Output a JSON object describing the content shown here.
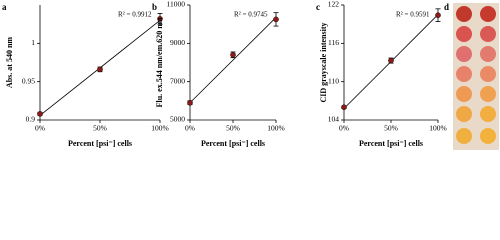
{
  "chart_data": [
    {
      "type": "scatter",
      "panel_label": "a",
      "ylabel": "Abs. at 540 nm",
      "xlabel": "Percent [psi⁻] cells",
      "annotation": "R² = 0.9912",
      "x": [
        0,
        50,
        100
      ],
      "values": [
        0.908,
        0.966,
        1.032
      ],
      "errors": [
        0.002,
        0.003,
        0.007
      ],
      "trendline": [
        0.906,
        1.03
      ],
      "color": "#8b1a1a",
      "xlim": [
        0,
        100
      ],
      "xticks": [
        {
          "value": 0,
          "label": "0%"
        },
        {
          "value": 50,
          "label": "50%"
        },
        {
          "value": 100,
          "label": "100%"
        }
      ],
      "ylim": [
        0.9,
        1.05
      ],
      "yticks": [
        0.9,
        0.95,
        1
      ]
    },
    {
      "type": "scatter",
      "panel_label": "b",
      "ylabel": "Flu. ex.544 nm/em.620 nm",
      "xlabel": "Percent [psi⁻] cells",
      "annotation": "R² = 0.9745",
      "x": [
        0,
        50,
        100
      ],
      "values": [
        5900,
        8400,
        10250
      ],
      "errors": [
        100,
        150,
        350
      ],
      "trendline": [
        5900,
        10350
      ],
      "color": "#8b1a1a",
      "xlim": [
        0,
        100
      ],
      "xticks": [
        {
          "value": 0,
          "label": "0%"
        },
        {
          "value": 50,
          "label": "50%"
        },
        {
          "value": 100,
          "label": "100%"
        }
      ],
      "ylim": [
        5000,
        11000
      ],
      "yticks": [
        5000,
        7000,
        9000,
        11000
      ]
    },
    {
      "type": "scatter",
      "panel_label": "c",
      "ylabel": "CID grayscale intensity",
      "xlabel": "Percent [psi⁻] cells",
      "annotation": "R² = 0.9591",
      "x": [
        0,
        50,
        100
      ],
      "values": [
        106,
        113.3,
        120.4
      ],
      "errors": [
        0.2,
        0.4,
        1.0
      ],
      "trendline": [
        105.8,
        120.5
      ],
      "color": "#8b1a1a",
      "xlim": [
        0,
        100
      ],
      "xticks": [
        {
          "value": 0,
          "label": "0%"
        },
        {
          "value": 50,
          "label": "50%"
        },
        {
          "value": 100,
          "label": "100%"
        }
      ],
      "ylim": [
        104,
        122
      ],
      "yticks": [
        104,
        110,
        116,
        122
      ]
    }
  ],
  "image_panel": {
    "panel_label": "d"
  }
}
